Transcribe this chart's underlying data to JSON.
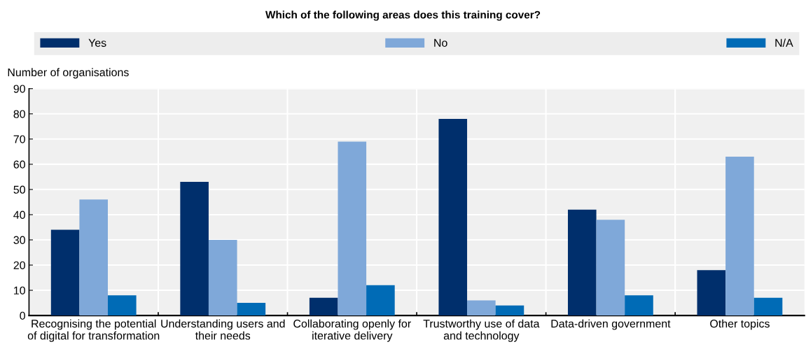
{
  "chart_data": {
    "type": "bar",
    "title": "Which of the following areas does this training cover?",
    "ylabel": "Number of organisations",
    "categories": [
      "Recognising the potential of digital for transformation",
      "Understanding users and their needs",
      "Collaborating openly for iterative delivery",
      "Trustworthy use of data and technology",
      "Data-driven government",
      "Other topics"
    ],
    "series": [
      {
        "name": "Yes",
        "color": "#002f6c",
        "values": [
          34,
          53,
          7,
          78,
          42,
          18
        ]
      },
      {
        "name": "No",
        "color": "#7fa8d9",
        "values": [
          46,
          30,
          69,
          6,
          38,
          63
        ]
      },
      {
        "name": "N/A",
        "color": "#006bb6",
        "values": [
          8,
          5,
          12,
          4,
          8,
          7
        ]
      }
    ],
    "ylim": [
      0,
      90
    ],
    "yticks": [
      0,
      10,
      20,
      30,
      40,
      50,
      60,
      70,
      80,
      90
    ],
    "grid": true,
    "legend": "top"
  }
}
